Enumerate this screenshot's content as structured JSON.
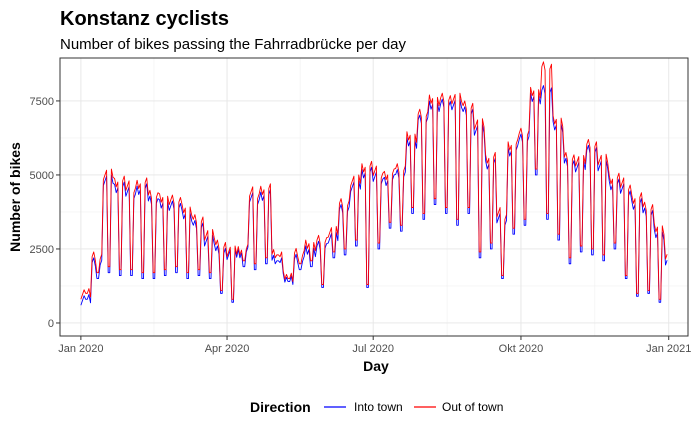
{
  "chart_data": {
    "type": "line",
    "title": "Konstanz cyclists",
    "subtitle": "Number of bikes passing the Fahrradbrücke per day",
    "xlabel": "Day",
    "ylabel": "Number of bikes",
    "x_range": [
      "2019-12-19",
      "2021-01-13"
    ],
    "ylim": [
      -440,
      8950
    ],
    "grid": true,
    "x_ticks": [
      {
        "date": "2020-01-01",
        "label": "Jan 2020"
      },
      {
        "date": "2020-04-01",
        "label": "Apr 2020"
      },
      {
        "date": "2020-07-01",
        "label": "Jul 2020"
      },
      {
        "date": "2020-10-01",
        "label": "Okt 2020"
      },
      {
        "date": "2021-01-01",
        "label": "Jan 2021"
      }
    ],
    "y_ticks": [
      0,
      2500,
      5000,
      7500
    ],
    "y_tick_labels": [
      "0",
      "2500",
      "5000",
      "7500"
    ],
    "legend": {
      "title": "Direction",
      "position": "bottom",
      "entries": [
        "Into town",
        "Out of town"
      ]
    },
    "series": [
      {
        "name": "Into town",
        "color": "#0000ff",
        "weekly_start": "2020-01-01",
        "weekday_levels": [
          800,
          2000,
          4800,
          4600,
          4400,
          4500,
          4200,
          4000,
          4000,
          3600,
          3300,
          2800,
          2400,
          2300,
          2400,
          4200,
          4300,
          2200,
          1500,
          2200,
          2400,
          2600,
          2900,
          3800,
          4600,
          5100,
          4900,
          4800,
          5100,
          6100,
          6900,
          7300,
          7400,
          7400,
          7100,
          6500,
          5400,
          3500,
          5800,
          6300,
          7600,
          7900,
          6600,
          5400,
          5300,
          5800,
          5300,
          4700,
          4500,
          4000,
          3800,
          3000,
          2000
        ],
        "weekend_levels": [
          800,
          1500,
          1700,
          1600,
          1600,
          1500,
          1500,
          1600,
          1700,
          1500,
          1600,
          1500,
          1000,
          700,
          1900,
          1800,
          2000,
          2100,
          1400,
          1800,
          1900,
          1200,
          2200,
          2300,
          2600,
          1200,
          2500,
          3200,
          3100,
          3700,
          3500,
          4000,
          3700,
          3300,
          3700,
          2200,
          2500,
          1500,
          3000,
          3300,
          5000,
          3500,
          2800,
          2000,
          2400,
          2300,
          2100,
          2500,
          1500,
          900,
          1000,
          700,
          300
        ]
      },
      {
        "name": "Out of town",
        "color": "#ff0000",
        "weekly_start": "2020-01-01",
        "weekday_levels": [
          1000,
          2200,
          5000,
          4800,
          4600,
          4700,
          4400,
          4200,
          4200,
          3800,
          3500,
          3000,
          2600,
          2400,
          2500,
          4400,
          4500,
          2400,
          1600,
          2400,
          2600,
          2800,
          3100,
          4000,
          4800,
          5300,
          5100,
          5000,
          5300,
          6300,
          7100,
          7500,
          7600,
          7600,
          7300,
          6700,
          5600,
          3700,
          6000,
          6500,
          7800,
          8700,
          6800,
          5600,
          5500,
          6000,
          5500,
          4900,
          4700,
          4200,
          4000,
          3200,
          2200
        ],
        "weekend_levels": [
          1000,
          1700,
          1900,
          1800,
          1800,
          1700,
          1700,
          1800,
          1900,
          1700,
          1800,
          1700,
          1100,
          800,
          2100,
          2000,
          2200,
          2300,
          1500,
          2000,
          2100,
          1300,
          2400,
          2500,
          2800,
          1300,
          2700,
          3400,
          3300,
          3900,
          3700,
          4200,
          3900,
          3500,
          3900,
          2400,
          2700,
          1600,
          3200,
          3500,
          5200,
          3700,
          3000,
          2200,
          2600,
          2500,
          2300,
          2700,
          1600,
          1000,
          1100,
          800,
          0
        ]
      }
    ]
  }
}
